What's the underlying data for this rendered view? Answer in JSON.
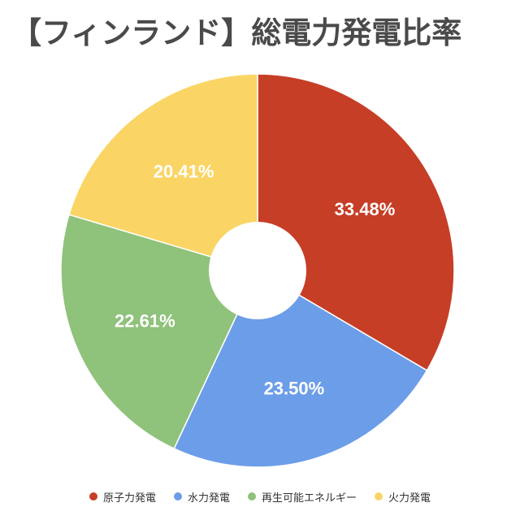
{
  "title": "【フィンランド】総電力発電比率",
  "chart_data": {
    "type": "pie",
    "title": "【フィンランド】総電力発電比率",
    "donut": true,
    "legend_position": "bottom",
    "slices": [
      {
        "name": "原子力発電",
        "value": 33.48,
        "label": "33.48%",
        "color": "#c63e26"
      },
      {
        "name": "水力発電",
        "value": 23.5,
        "label": "23.50%",
        "color": "#6c9de8"
      },
      {
        "name": "再生可能エネルギー",
        "value": 22.61,
        "label": "22.61%",
        "color": "#8fc27a"
      },
      {
        "name": "火力発電",
        "value": 20.41,
        "label": "20.41%",
        "color": "#fad565"
      }
    ]
  }
}
